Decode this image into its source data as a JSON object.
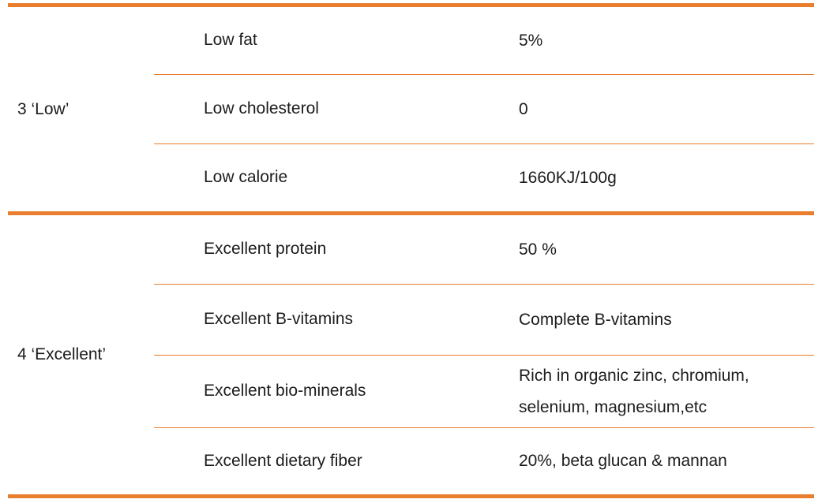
{
  "theme": {
    "accent_orange": "#E87E2E",
    "text_color": "#1C1C1C",
    "background": "#FFFFFF"
  },
  "table": {
    "description": "Nutrition claims table with two grouped sections",
    "groups": [
      {
        "label": "3 ‘Low’",
        "rows": [
          {
            "attribute": "Low fat",
            "value": "5%"
          },
          {
            "attribute": "Low cholesterol",
            "value": "0"
          },
          {
            "attribute": "Low calorie",
            "value": "1660KJ/100g"
          }
        ]
      },
      {
        "label": "4 ‘Excellent’",
        "rows": [
          {
            "attribute": "Excellent protein",
            "value": "50 %"
          },
          {
            "attribute": "Excellent B-vitamins",
            "value": "Complete B-vitamins"
          },
          {
            "attribute": "Excellent bio-minerals",
            "value": "Rich in organic zinc, chromium, selenium, magnesium,etc"
          },
          {
            "attribute": "Excellent dietary fiber",
            "value": "20%, beta glucan & mannan"
          }
        ]
      }
    ]
  }
}
